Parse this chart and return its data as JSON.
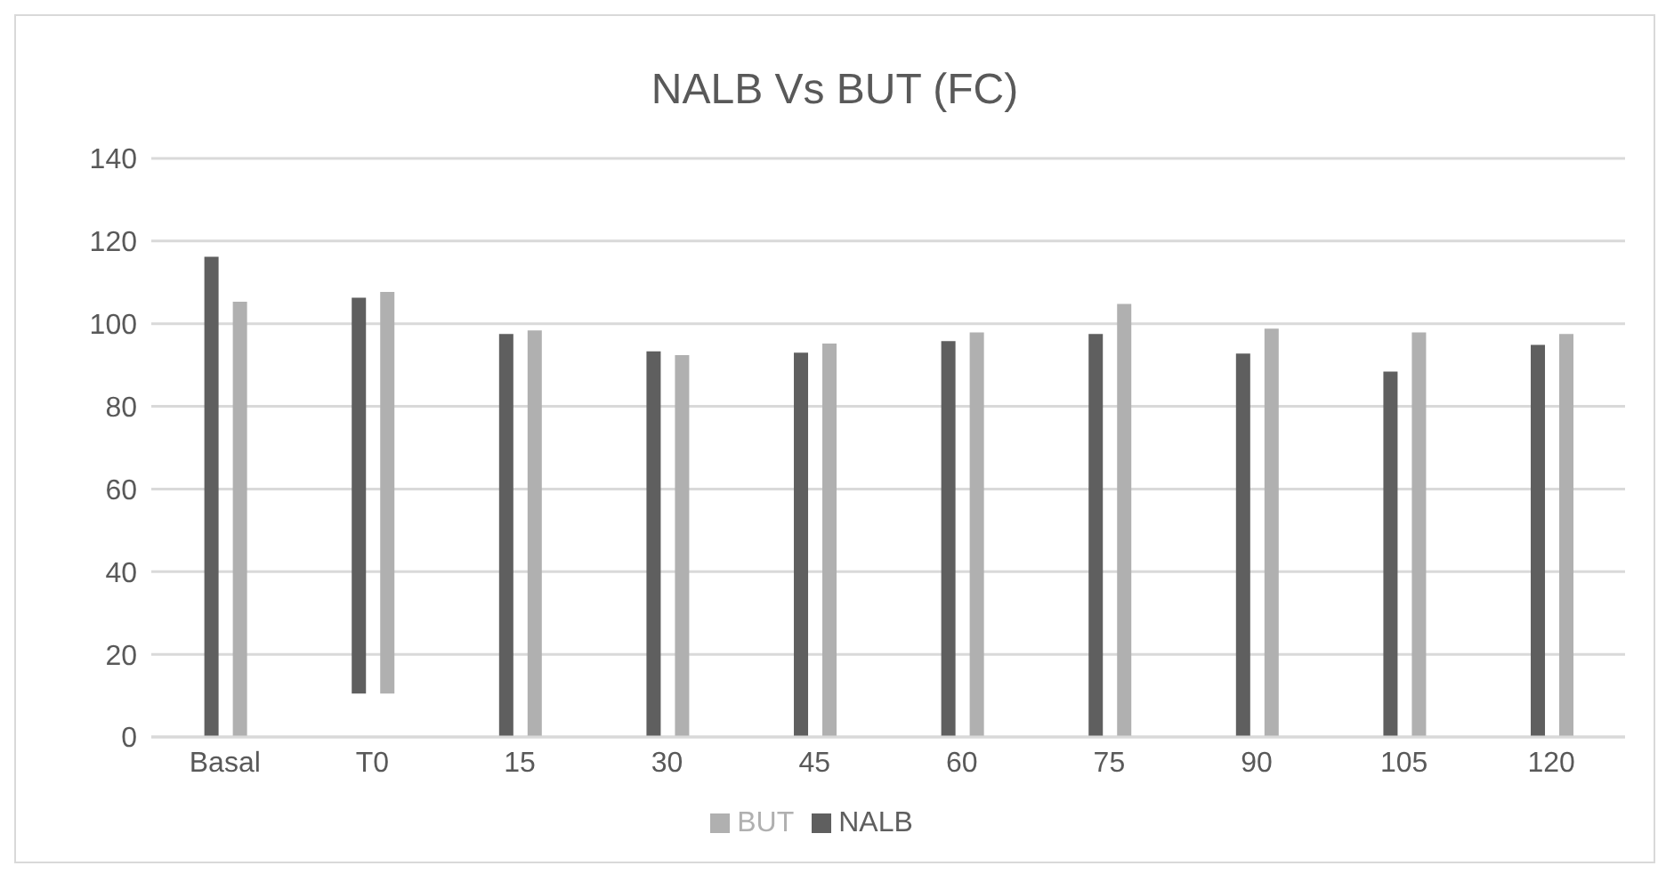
{
  "chart_data": {
    "type": "bar",
    "title": "NALB Vs BUT (FC)",
    "categories": [
      "Basal",
      "T0",
      "15",
      "30",
      "45",
      "60",
      "75",
      "90",
      "105",
      "120"
    ],
    "series": [
      {
        "name": "NALB",
        "color": "#5f5f5f",
        "values": [
          116.2,
          95.8,
          97.5,
          93.3,
          93.0,
          95.8,
          97.5,
          92.8,
          88.4,
          94.9
        ],
        "base": [
          0,
          10.5,
          0,
          0,
          0,
          0,
          0,
          0,
          0,
          0
        ]
      },
      {
        "name": "BUT",
        "color": "#b0b0b0",
        "values": [
          105.3,
          97.2,
          98.4,
          92.4,
          95.2,
          97.9,
          104.8,
          98.8,
          97.9,
          97.5
        ],
        "base": [
          0,
          10.5,
          0,
          0,
          0,
          0,
          0,
          0,
          0,
          0
        ]
      }
    ],
    "ylim": [
      0,
      140
    ],
    "yticks": [
      0,
      20,
      40,
      60,
      80,
      100,
      120,
      140
    ],
    "grid": "y",
    "legend": "bottom"
  }
}
